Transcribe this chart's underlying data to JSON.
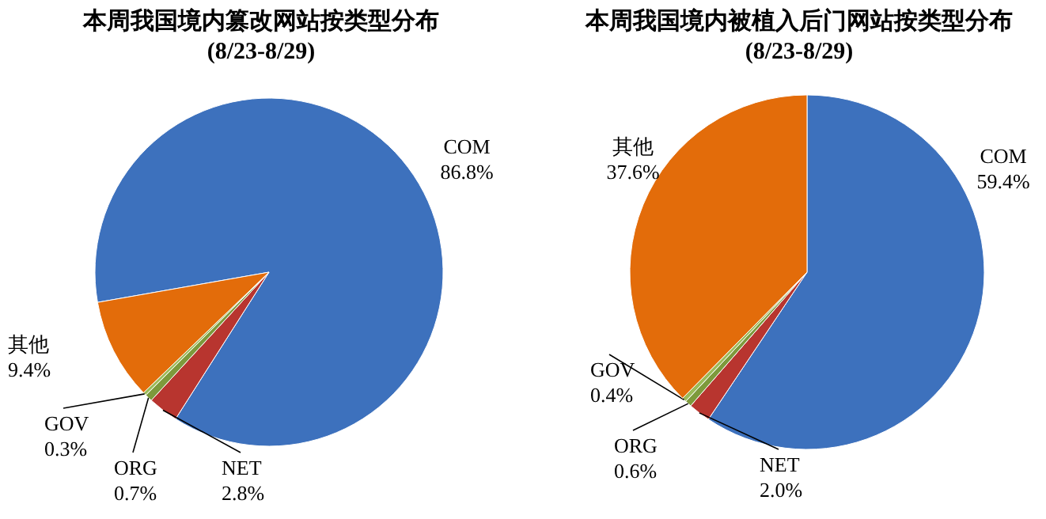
{
  "chart_data": [
    {
      "type": "pie",
      "title": "本周我国境内篡改网站按类型分布",
      "subtitle": "(8/23-8/29)",
      "categories": [
        "COM",
        "NET",
        "ORG",
        "GOV",
        "其他"
      ],
      "values": [
        86.8,
        2.8,
        0.7,
        0.3,
        9.4
      ],
      "value_labels": [
        "86.8%",
        "2.8%",
        "0.7%",
        "0.3%",
        "9.4%"
      ],
      "colors": [
        "#3d71bd",
        "#b8352f",
        "#7d9a3c",
        "#9bbb59",
        "#e36c0a"
      ],
      "legend": false
    },
    {
      "type": "pie",
      "title": "本周我国境内被植入后门网站按类型分布",
      "subtitle": "(8/23-8/29)",
      "categories": [
        "COM",
        "NET",
        "ORG",
        "GOV",
        "其他"
      ],
      "values": [
        59.4,
        2.0,
        0.6,
        0.4,
        37.6
      ],
      "value_labels": [
        "59.4%",
        "2.0%",
        "0.6%",
        "0.4%",
        "37.6%"
      ],
      "colors": [
        "#3d71bd",
        "#b8352f",
        "#7d9a3c",
        "#9bbb59",
        "#e36c0a"
      ],
      "legend": false
    }
  ]
}
